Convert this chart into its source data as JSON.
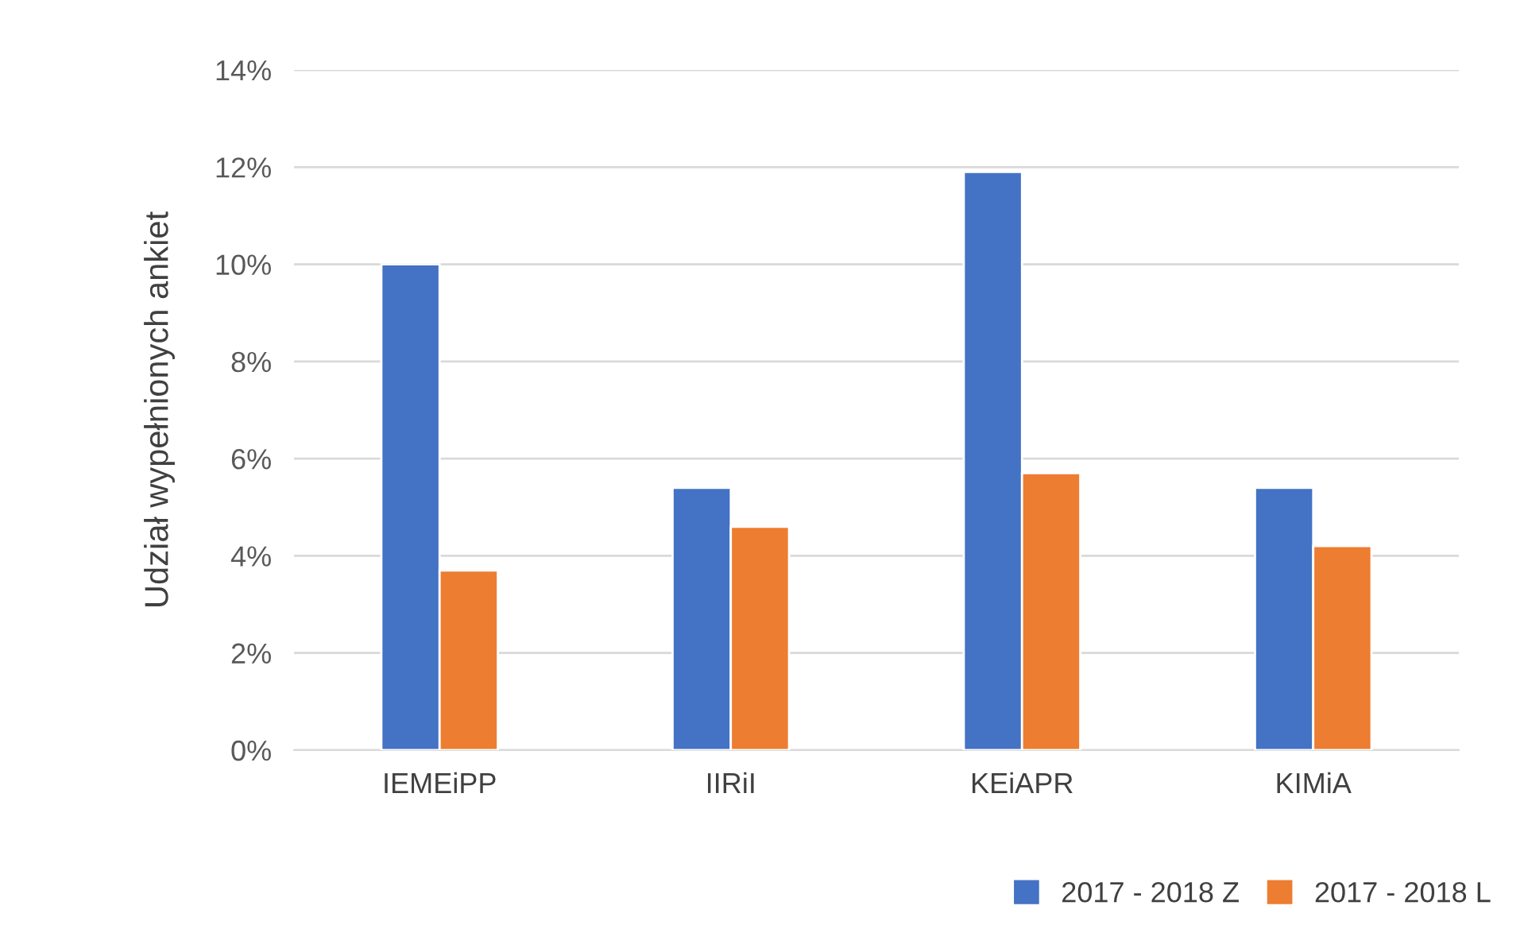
{
  "chart_data": {
    "type": "bar",
    "ylabel": "Udział wypełnionych ankiet",
    "categories": [
      "IEMEiPP",
      "IIRiI",
      "KEiAPR",
      "KIMiA"
    ],
    "series": [
      {
        "name": "2017 - 2018 Z",
        "color": "#4472c4",
        "values": [
          10.0,
          5.4,
          11.9,
          5.4
        ]
      },
      {
        "name": "2017 - 2018 L",
        "color": "#ed7d31",
        "values": [
          3.7,
          4.6,
          5.7,
          4.2
        ]
      }
    ],
    "ylim": [
      0,
      14
    ],
    "yticks": [
      {
        "value": 0,
        "label": "0%"
      },
      {
        "value": 2,
        "label": "2%"
      },
      {
        "value": 4,
        "label": "4%"
      },
      {
        "value": 6,
        "label": "6%"
      },
      {
        "value": 8,
        "label": "8%"
      },
      {
        "value": 10,
        "label": "10%"
      },
      {
        "value": 12,
        "label": "12%"
      },
      {
        "value": 14,
        "label": "14%"
      }
    ],
    "grid": "y",
    "legend": "bottom right"
  }
}
